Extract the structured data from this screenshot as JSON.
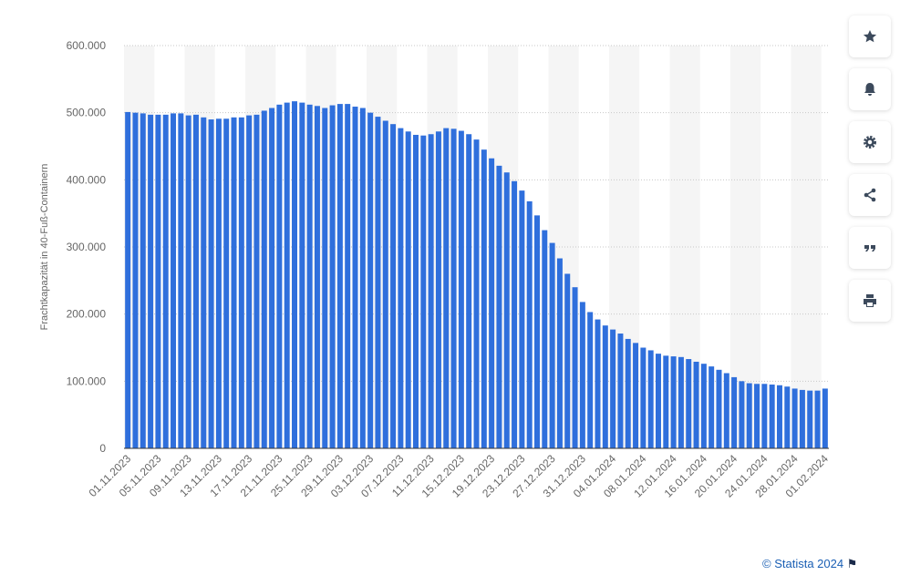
{
  "chart_data": {
    "type": "bar",
    "y_label": "Frachtkapazität in 40-Fuß-Containern",
    "color": "#2f6fdc",
    "categories": [
      "01.11.2023",
      null,
      null,
      null,
      "05.11.2023",
      null,
      null,
      null,
      "09.11.2023",
      null,
      null,
      null,
      "13.11.2023",
      null,
      null,
      null,
      "17.11.2023",
      null,
      null,
      null,
      "21.11.2023",
      null,
      null,
      null,
      "25.11.2023",
      null,
      null,
      null,
      "29.11.2023",
      null,
      null,
      null,
      "03.12.2023",
      null,
      null,
      null,
      "07.12.2023",
      null,
      null,
      null,
      "11.12.2023",
      null,
      null,
      null,
      "15.12.2023",
      null,
      null,
      null,
      "19.12.2023",
      null,
      null,
      null,
      "23.12.2023",
      null,
      null,
      null,
      "27.12.2023",
      null,
      null,
      null,
      "31.12.2023",
      null,
      null,
      null,
      "04.01.2024",
      null,
      null,
      null,
      "08.01.2024",
      null,
      null,
      null,
      "12.01.2024",
      null,
      null,
      null,
      "16.01.2024",
      null,
      null,
      null,
      "20.01.2024",
      null,
      null,
      null,
      "24.01.2024",
      null,
      null,
      null,
      "28.01.2024",
      null,
      null,
      null,
      "01.02.2024"
    ],
    "values": [
      501000,
      500000,
      499000,
      497000,
      497000,
      497000,
      499000,
      499000,
      496000,
      497000,
      493000,
      490000,
      491000,
      491000,
      493000,
      493000,
      496000,
      497000,
      503000,
      507000,
      512000,
      515000,
      517000,
      515000,
      512000,
      510000,
      507000,
      511000,
      513000,
      513000,
      509000,
      507000,
      500000,
      494000,
      488000,
      483000,
      477000,
      472000,
      467000,
      466000,
      468000,
      472000,
      477000,
      476000,
      473000,
      468000,
      460000,
      445000,
      432000,
      421000,
      411000,
      398000,
      384000,
      368000,
      347000,
      325000,
      306000,
      283000,
      260000,
      240000,
      218000,
      203000,
      192000,
      183000,
      177000,
      171000,
      163000,
      157000,
      150000,
      146000,
      141000,
      138000,
      137000,
      136000,
      133000,
      129000,
      126000,
      122000,
      117000,
      112000,
      106000,
      100000,
      97000,
      96000,
      96000,
      95000,
      94000,
      92000,
      89000,
      87000,
      86000,
      86000,
      89000
    ],
    "ylim": [
      0,
      600000
    ],
    "yticks": [
      0,
      {
        "value": 100000,
        "label": "100.000"
      },
      {
        "value": 200000,
        "label": "200.000"
      },
      {
        "value": 300000,
        "label": "300.000"
      },
      {
        "value": 400000,
        "label": "400.000"
      },
      {
        "value": 500000,
        "label": "500.000"
      },
      {
        "value": 600000,
        "label": "600.000"
      }
    ],
    "grid": true
  },
  "footer": "© Statista 2024"
}
